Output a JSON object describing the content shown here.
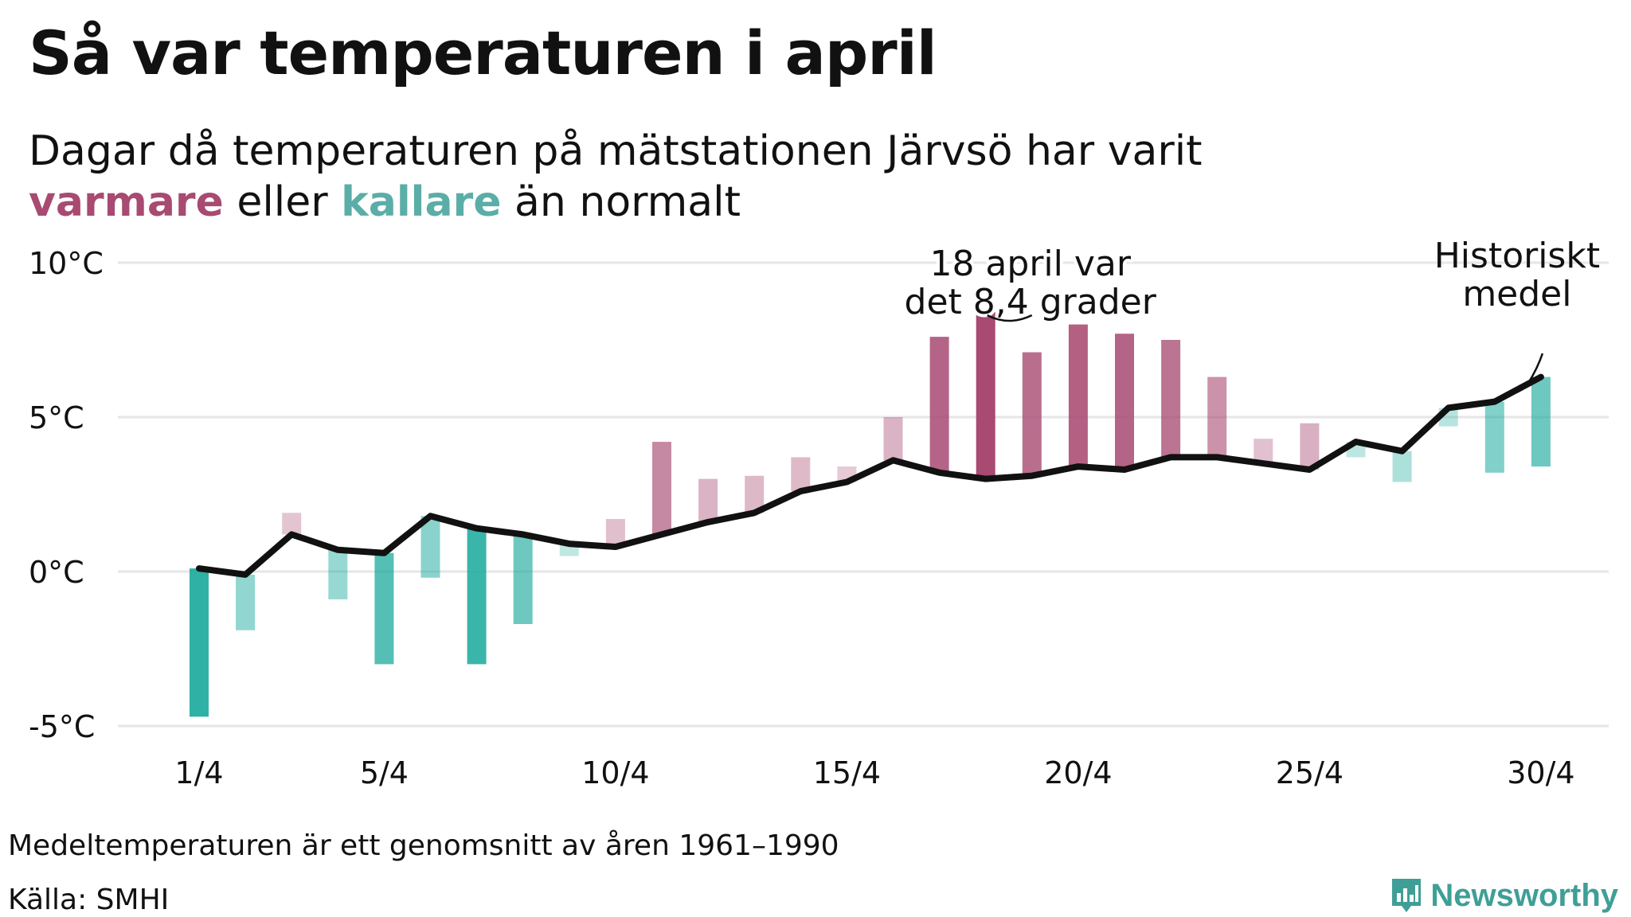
{
  "title": "Så var temperaturen i april",
  "subtitle": {
    "line1": "Dagar då temperaturen på mätstationen Järvsö har varit",
    "warm_word": "varmare",
    "middle": "eller",
    "cold_word": "kallare",
    "end": "än normalt"
  },
  "footnote": "Medeltemperaturen är ett genomsnitt av åren 1961–1990",
  "source": "Källa: SMHI",
  "brand": {
    "name": "Newsworthy",
    "icon": "newsworthy-logo-icon"
  },
  "colors": {
    "warm": "#a84a72",
    "cold": "#1aa99c",
    "line": "#111111",
    "grid": "#e6e6e6"
  },
  "chart_data": {
    "type": "bar",
    "y_ticks": [
      {
        "value": 10,
        "label": "10°C"
      },
      {
        "value": 5,
        "label": "5°C"
      },
      {
        "value": 0,
        "label": "0°C"
      },
      {
        "value": -5,
        "label": "-5°C"
      }
    ],
    "x_ticks": [
      {
        "day": 1,
        "label": "1/4"
      },
      {
        "day": 5,
        "label": "5/4"
      },
      {
        "day": 10,
        "label": "10/4"
      },
      {
        "day": 15,
        "label": "15/4"
      },
      {
        "day": 20,
        "label": "20/4"
      },
      {
        "day": 25,
        "label": "25/4"
      },
      {
        "day": 30,
        "label": "30/4"
      }
    ],
    "ylim": [
      -5.5,
      10
    ],
    "grid": true,
    "days": [
      1,
      2,
      3,
      4,
      5,
      6,
      7,
      8,
      9,
      10,
      11,
      12,
      13,
      14,
      15,
      16,
      17,
      18,
      19,
      20,
      21,
      22,
      23,
      24,
      25,
      26,
      27,
      28,
      29,
      30
    ],
    "series": [
      {
        "values": [
          -4.7,
          -1.9,
          1.9,
          -0.9,
          -3.0,
          -0.2,
          -3.0,
          -1.7,
          0.5,
          1.7,
          4.2,
          3.0,
          3.1,
          3.7,
          3.4,
          5.0,
          7.6,
          8.4,
          7.1,
          8.0,
          7.7,
          7.5,
          6.3,
          4.3,
          4.8,
          3.7,
          2.9,
          4.7,
          3.2,
          3.4
        ]
      },
      {
        "values": [
          0.1,
          -0.1,
          1.2,
          0.7,
          0.6,
          1.8,
          1.4,
          1.2,
          0.9,
          0.8,
          1.2,
          1.6,
          1.9,
          2.6,
          2.9,
          3.6,
          3.2,
          3.0,
          3.1,
          3.4,
          3.3,
          3.7,
          3.7,
          3.5,
          3.3,
          4.2,
          3.9,
          5.3,
          5.5,
          6.3
        ]
      }
    ],
    "annotations": [
      {
        "day": 18,
        "text_lines": [
          "18 april var",
          "det 8,4 grader"
        ]
      },
      {
        "day": 30,
        "text_lines": [
          "Historiskt",
          "medel"
        ]
      }
    ]
  }
}
